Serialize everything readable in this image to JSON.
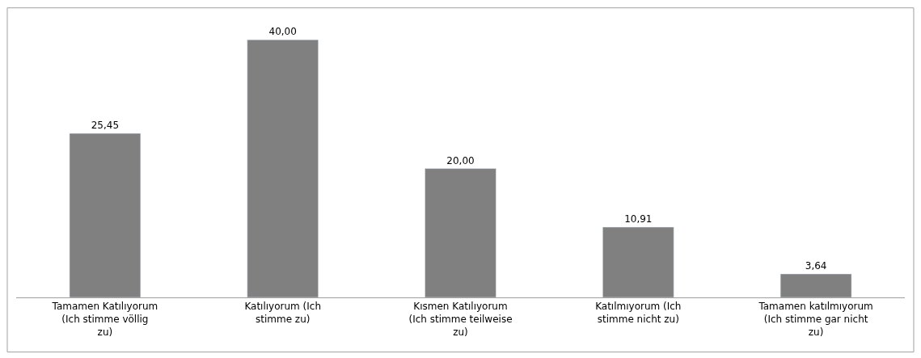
{
  "chart_data": {
    "type": "bar",
    "categories": [
      "Tamamen Katılıyorum (Ich stimme völlig zu)",
      "Katılıyorum (Ich stimme zu)",
      "Kısmen Katılıyorum (Ich stimme teilweise zu)",
      "Katılmıyorum (Ich stimme nicht zu)",
      "Tamamen katılmıyorum (Ich stimme gar nicht zu)"
    ],
    "values": [
      25.45,
      40.0,
      20.0,
      10.91,
      3.64
    ],
    "value_labels": [
      "25,45",
      "40,00",
      "20,00",
      "10,91",
      "3,64"
    ],
    "color": "#808080"
  }
}
